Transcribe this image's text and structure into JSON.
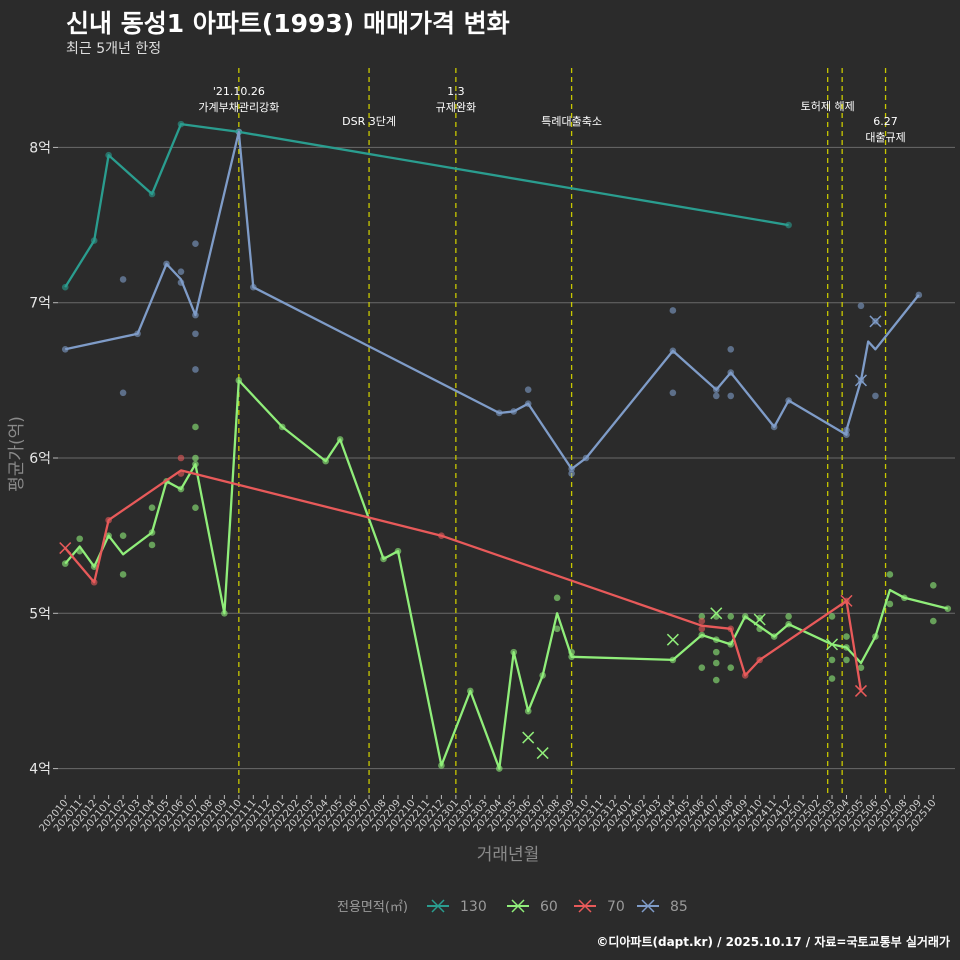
{
  "title": "신내 동성1 아파트(1993) 매매가격 변화",
  "subtitle": "최근 5개년 한정",
  "caption": "©디아파트(dapt.kr) / 2025.10.17 / 자료=국토교통부 실거래가",
  "chart_data": {
    "type": "line",
    "xlabel": "거래년월",
    "ylabel": "평균가(억)",
    "ylim": [
      3.83,
      8.55
    ],
    "yticks": [
      4,
      5,
      6,
      7,
      8
    ],
    "ytick_labels": [
      "4억",
      "5억",
      "6억",
      "7억",
      "8억"
    ],
    "xlim": [
      -0.5,
      61.5
    ],
    "categories": [
      "202010",
      "202011",
      "202012",
      "202101",
      "202102",
      "202103",
      "202104",
      "202105",
      "202106",
      "202107",
      "202108",
      "202109",
      "202110",
      "202111",
      "202112",
      "202201",
      "202202",
      "202203",
      "202204",
      "202205",
      "202206",
      "202207",
      "202208",
      "202209",
      "202210",
      "202211",
      "202212",
      "202301",
      "202302",
      "202303",
      "202304",
      "202305",
      "202306",
      "202307",
      "202308",
      "202309",
      "202310",
      "202311",
      "202312",
      "202401",
      "202402",
      "202403",
      "202404",
      "202405",
      "202406",
      "202407",
      "202408",
      "202409",
      "202410",
      "202411",
      "202412",
      "202501",
      "202502",
      "202503",
      "202504",
      "202505",
      "202506",
      "202507",
      "202508",
      "202509",
      "202510"
    ],
    "grid": true,
    "legend_title": "전용면적(㎡)",
    "legend_position": "bottom",
    "events": [
      {
        "x": 12,
        "label": "'21.10.26\n가계부채관리강화",
        "row": 0
      },
      {
        "x": 21,
        "label": "DSR 3단계",
        "row": 1
      },
      {
        "x": 27,
        "label": "1.3\n규제완화",
        "row": 0
      },
      {
        "x": 35,
        "label": "특례대출축소",
        "row": 1
      },
      {
        "x": 52.7,
        "label": "토허제 해제",
        "row": 0.5
      },
      {
        "x": 53.7,
        "label": "",
        "row": 0
      },
      {
        "x": 56.7,
        "label": "6.27\n대출규제",
        "row": 1
      }
    ],
    "series": [
      {
        "name": "130",
        "color": "#2a9d8f",
        "line": [
          [
            0,
            7.1
          ],
          [
            2,
            7.4
          ],
          [
            3,
            7.95
          ],
          [
            6,
            7.7
          ],
          [
            8,
            8.15
          ],
          [
            12,
            8.1
          ],
          [
            50,
            7.5
          ]
        ],
        "points": [
          [
            0,
            7.1
          ],
          [
            2,
            7.4
          ],
          [
            3,
            7.95
          ],
          [
            6,
            7.7
          ],
          [
            8,
            8.15
          ],
          [
            12,
            8.1
          ],
          [
            50,
            7.5
          ]
        ],
        "crosses": []
      },
      {
        "name": "60",
        "color": "#90ee7a",
        "line": [
          [
            0,
            5.32
          ],
          [
            1,
            5.43
          ],
          [
            2,
            5.3
          ],
          [
            3,
            5.5
          ],
          [
            4,
            5.38
          ],
          [
            6,
            5.52
          ],
          [
            7,
            5.85
          ],
          [
            8,
            5.8
          ],
          [
            9,
            5.96
          ],
          [
            11,
            5.0
          ],
          [
            12,
            6.5
          ],
          [
            15,
            6.2
          ],
          [
            18,
            5.98
          ],
          [
            19,
            6.12
          ],
          [
            22,
            5.35
          ],
          [
            23,
            5.4
          ],
          [
            26,
            4.02
          ],
          [
            28,
            4.5
          ],
          [
            30,
            4.0
          ],
          [
            31,
            4.75
          ],
          [
            32,
            4.37
          ],
          [
            33,
            4.6
          ],
          [
            34,
            5.0
          ],
          [
            35,
            4.72
          ],
          [
            42,
            4.7
          ],
          [
            44,
            4.86
          ],
          [
            45,
            4.83
          ],
          [
            46,
            4.8
          ],
          [
            47,
            4.98
          ],
          [
            49,
            4.85
          ],
          [
            50,
            4.93
          ],
          [
            53,
            4.8
          ],
          [
            54,
            4.78
          ],
          [
            55,
            4.68
          ],
          [
            56,
            4.85
          ],
          [
            57,
            5.15
          ],
          [
            58,
            5.1
          ],
          [
            61,
            5.03
          ]
        ],
        "points": [
          [
            0,
            5.32
          ],
          [
            1,
            5.48
          ],
          [
            1,
            5.4
          ],
          [
            2,
            5.3
          ],
          [
            3,
            5.5
          ],
          [
            4,
            5.5
          ],
          [
            4,
            5.25
          ],
          [
            6,
            5.52
          ],
          [
            6,
            5.68
          ],
          [
            6,
            5.44
          ],
          [
            7,
            5.85
          ],
          [
            8,
            5.8
          ],
          [
            9,
            5.96
          ],
          [
            9,
            6.0
          ],
          [
            9,
            6.2
          ],
          [
            9,
            5.68
          ],
          [
            11,
            5.0
          ],
          [
            12,
            6.5
          ],
          [
            15,
            6.2
          ],
          [
            18,
            5.98
          ],
          [
            19,
            6.12
          ],
          [
            22,
            5.35
          ],
          [
            23,
            5.4
          ],
          [
            26,
            4.02
          ],
          [
            28,
            4.5
          ],
          [
            30,
            4.0
          ],
          [
            31,
            4.75
          ],
          [
            32,
            4.37
          ],
          [
            33,
            4.6
          ],
          [
            34,
            4.9
          ],
          [
            34,
            5.1
          ],
          [
            35,
            4.72
          ],
          [
            35,
            4.75
          ],
          [
            42,
            4.7
          ],
          [
            44,
            4.86
          ],
          [
            44,
            4.98
          ],
          [
            44,
            4.65
          ],
          [
            45,
            4.83
          ],
          [
            45,
            4.75
          ],
          [
            45,
            4.68
          ],
          [
            45,
            4.57
          ],
          [
            45,
            4.98
          ],
          [
            46,
            4.8
          ],
          [
            46,
            4.98
          ],
          [
            46,
            4.65
          ],
          [
            47,
            4.98
          ],
          [
            48,
            4.97
          ],
          [
            48,
            4.9
          ],
          [
            49,
            4.85
          ],
          [
            50,
            4.93
          ],
          [
            50,
            4.98
          ],
          [
            53,
            4.98
          ],
          [
            53,
            4.7
          ],
          [
            53,
            4.58
          ],
          [
            54,
            4.85
          ],
          [
            54,
            4.78
          ],
          [
            54,
            4.7
          ],
          [
            55,
            4.65
          ],
          [
            56,
            4.85
          ],
          [
            57,
            5.25
          ],
          [
            57,
            5.06
          ],
          [
            58,
            5.1
          ],
          [
            60,
            5.18
          ],
          [
            60,
            4.95
          ],
          [
            61,
            5.03
          ]
        ],
        "crosses": [
          [
            42,
            4.83
          ],
          [
            45,
            5.0
          ],
          [
            48,
            4.96
          ],
          [
            53,
            4.8
          ],
          [
            32,
            4.2
          ],
          [
            33,
            4.1
          ]
        ]
      },
      {
        "name": "70",
        "color": "#e85a5a",
        "line": [
          [
            0,
            5.42
          ],
          [
            2,
            5.2
          ],
          [
            3,
            5.6
          ],
          [
            8,
            5.92
          ],
          [
            26,
            5.5
          ],
          [
            44,
            4.92
          ],
          [
            46,
            4.9
          ],
          [
            47,
            4.6
          ],
          [
            48,
            4.7
          ],
          [
            54,
            5.08
          ],
          [
            55,
            4.5
          ]
        ],
        "points": [
          [
            2,
            5.2
          ],
          [
            3,
            5.6
          ],
          [
            8,
            6.0
          ],
          [
            8,
            5.9
          ],
          [
            26,
            5.5
          ],
          [
            44,
            4.9
          ],
          [
            44,
            4.95
          ],
          [
            46,
            4.9
          ],
          [
            47,
            4.6
          ],
          [
            48,
            4.7
          ],
          [
            54,
            5.08
          ]
        ],
        "crosses": [
          [
            0,
            5.42
          ],
          [
            54,
            5.08
          ],
          [
            55,
            4.5
          ]
        ]
      },
      {
        "name": "85",
        "color": "#7f9cc8",
        "line": [
          [
            0,
            6.7
          ],
          [
            5,
            6.8
          ],
          [
            7,
            7.25
          ],
          [
            8,
            7.15
          ],
          [
            9,
            6.92
          ],
          [
            12,
            8.1
          ],
          [
            13,
            7.1
          ],
          [
            30,
            6.29
          ],
          [
            31,
            6.3
          ],
          [
            32,
            6.35
          ],
          [
            35,
            5.93
          ],
          [
            36,
            6.0
          ],
          [
            42,
            6.69
          ],
          [
            45,
            6.44
          ],
          [
            46,
            6.55
          ],
          [
            49,
            6.2
          ],
          [
            50,
            6.37
          ],
          [
            54,
            6.15
          ],
          [
            54,
            6.18
          ],
          [
            55,
            6.5
          ],
          [
            55.5,
            6.75
          ],
          [
            56,
            6.7
          ],
          [
            59,
            7.05
          ]
        ],
        "points": [
          [
            0,
            6.7
          ],
          [
            4,
            7.15
          ],
          [
            4,
            6.42
          ],
          [
            5,
            6.8
          ],
          [
            7,
            7.25
          ],
          [
            8,
            7.2
          ],
          [
            8,
            7.13
          ],
          [
            9,
            7.38
          ],
          [
            9,
            6.92
          ],
          [
            9,
            6.8
          ],
          [
            9,
            6.57
          ],
          [
            12,
            8.1
          ],
          [
            13,
            7.1
          ],
          [
            30,
            6.29
          ],
          [
            31,
            6.3
          ],
          [
            32,
            6.35
          ],
          [
            32,
            6.44
          ],
          [
            35,
            5.93
          ],
          [
            35,
            5.9
          ],
          [
            36,
            6.0
          ],
          [
            42,
            6.95
          ],
          [
            42,
            6.69
          ],
          [
            42,
            6.42
          ],
          [
            45,
            6.44
          ],
          [
            45,
            6.4
          ],
          [
            46,
            6.7
          ],
          [
            46,
            6.55
          ],
          [
            46,
            6.4
          ],
          [
            49,
            6.2
          ],
          [
            50,
            6.37
          ],
          [
            54,
            6.15
          ],
          [
            54,
            6.18
          ],
          [
            55,
            6.98
          ],
          [
            55,
            6.5
          ],
          [
            56,
            6.88
          ],
          [
            56,
            6.4
          ],
          [
            59,
            7.05
          ]
        ],
        "crosses": [
          [
            55,
            6.5
          ],
          [
            56,
            6.88
          ]
        ]
      }
    ]
  }
}
